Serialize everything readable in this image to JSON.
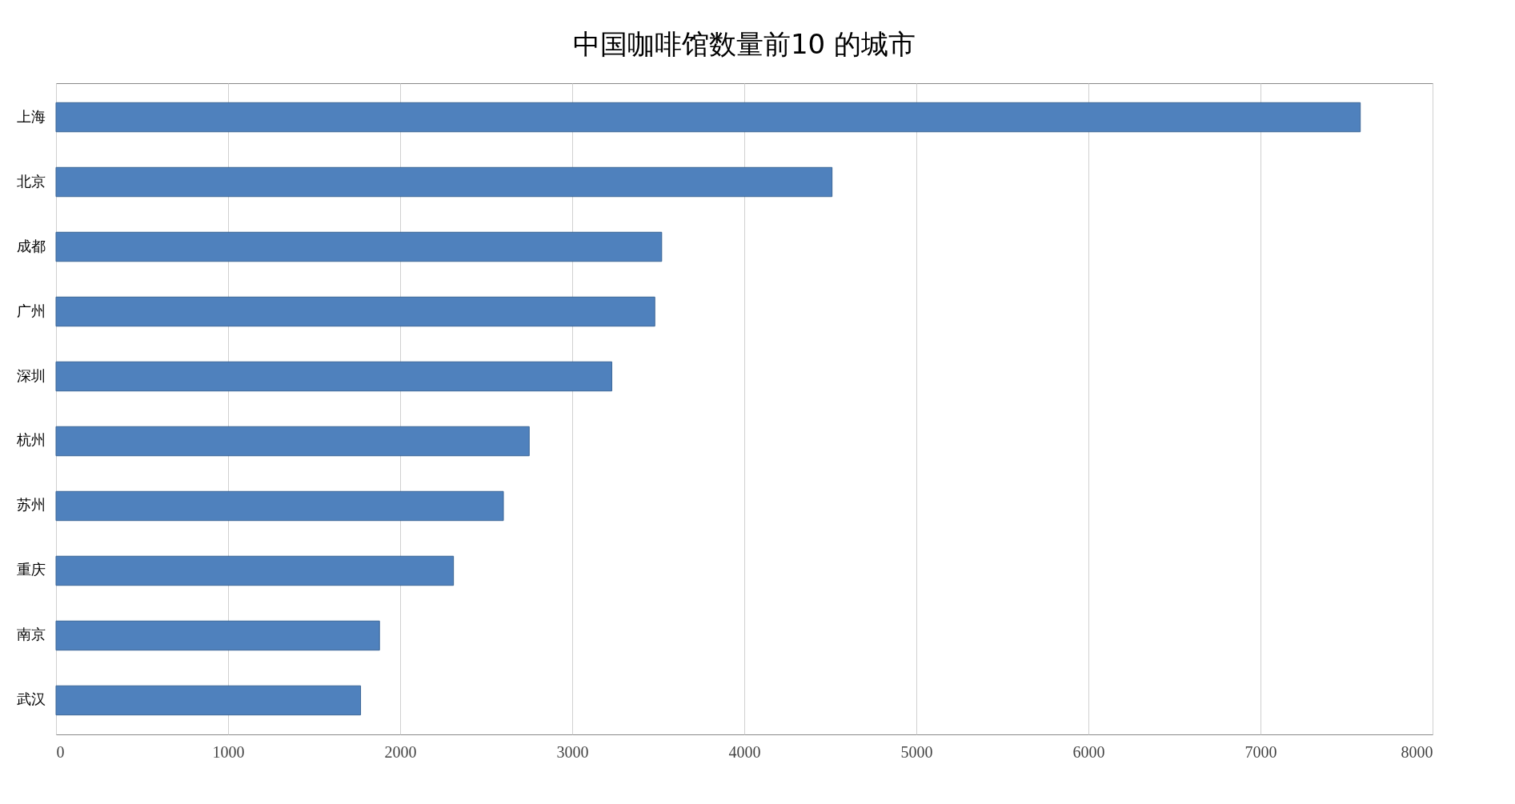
{
  "chart_data": {
    "type": "bar",
    "orientation": "horizontal",
    "title": "中国咖啡馆数量前10 的城市",
    "categories": [
      "上海",
      "北京",
      "成都",
      "广州",
      "深圳",
      "杭州",
      "苏州",
      "重庆",
      "南京",
      "武汉"
    ],
    "values": [
      7580,
      4510,
      3520,
      3480,
      3230,
      2750,
      2600,
      2310,
      1880,
      1770
    ],
    "color": "#4f81bd",
    "xlim": [
      0,
      8000
    ],
    "xticks": [
      0,
      1000,
      2000,
      3000,
      4000,
      5000,
      6000,
      7000,
      8000
    ],
    "grid": "x"
  }
}
